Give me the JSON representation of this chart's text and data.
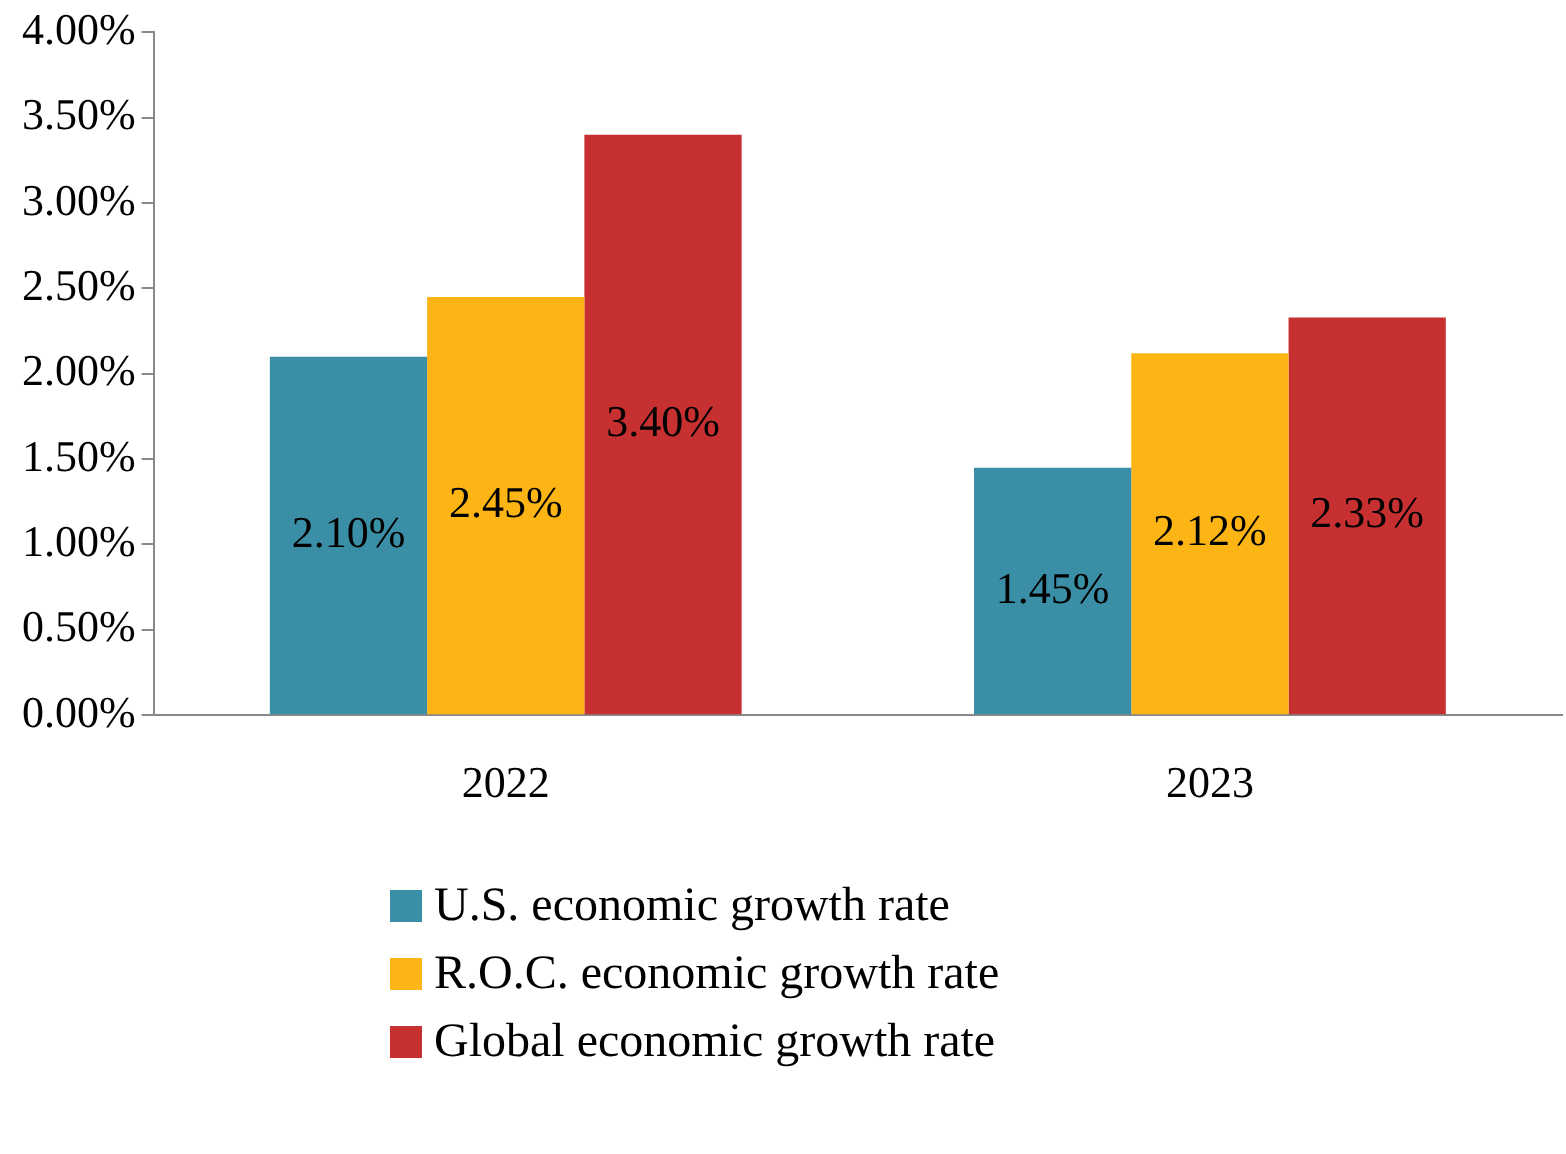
{
  "chart_data": {
    "type": "bar",
    "categories": [
      "2022",
      "2023"
    ],
    "series": [
      {
        "name": "U.S. economic growth rate",
        "color": "#3a8fa6",
        "values": [
          2.1,
          1.45
        ],
        "value_labels": [
          "2.10%",
          "1.45%"
        ]
      },
      {
        "name": "R.O.C. economic growth rate",
        "color": "#fdb515",
        "values": [
          2.45,
          2.12
        ],
        "value_labels": [
          "2.45%",
          "2.12%"
        ]
      },
      {
        "name": "Global economic growth rate",
        "color": "#c63031",
        "values": [
          3.4,
          2.33
        ],
        "value_labels": [
          "3.40%",
          "2.33%"
        ]
      }
    ],
    "ylim": [
      0,
      4
    ],
    "yticks": [
      {
        "value": 0,
        "label": "0.00%"
      },
      {
        "value": 0.5,
        "label": "0.50%"
      },
      {
        "value": 1,
        "label": "1.00%"
      },
      {
        "value": 1.5,
        "label": "1.50%"
      },
      {
        "value": 2,
        "label": "2.00%"
      },
      {
        "value": 2.5,
        "label": "2.50%"
      },
      {
        "value": 3,
        "label": "3.00%"
      },
      {
        "value": 3.5,
        "label": "3.50%"
      },
      {
        "value": 4,
        "label": "4.00%"
      }
    ],
    "grid": false,
    "legend": "bottom"
  }
}
